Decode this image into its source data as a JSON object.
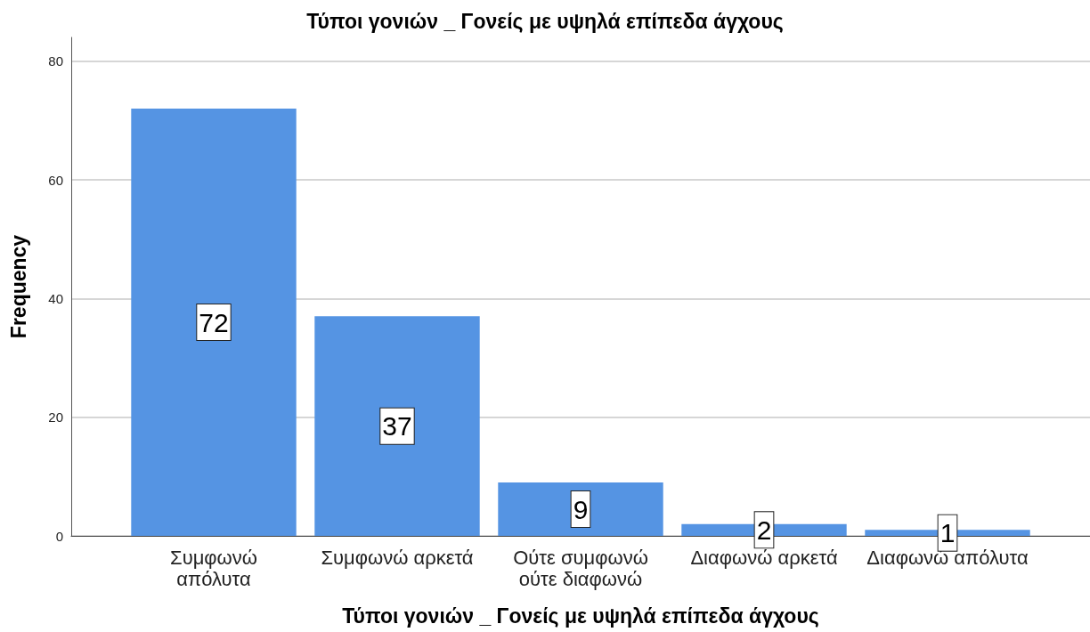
{
  "chart_data": {
    "type": "bar",
    "title": "Τύποι γονιών _ Γονείς με υψηλά επίπεδα άγχους",
    "xlabel": "Τύποι γονιών _ Γονείς με υψηλά επίπεδα άγχους",
    "ylabel": "Frequency",
    "categories": [
      "Συμφωνώ απόλυτα",
      "Συμφωνώ αρκετά",
      "Ούτε συμφωνώ ούτε διαφωνώ",
      "Διαφωνώ αρκετά",
      "Διαφωνώ απόλυτα"
    ],
    "values": [
      72,
      37,
      9,
      2,
      1
    ],
    "color": "#5594e3",
    "ylim": [
      0,
      84
    ],
    "yticks": [
      0,
      20,
      40,
      60,
      80
    ],
    "grid": "y",
    "data_labels": true
  }
}
